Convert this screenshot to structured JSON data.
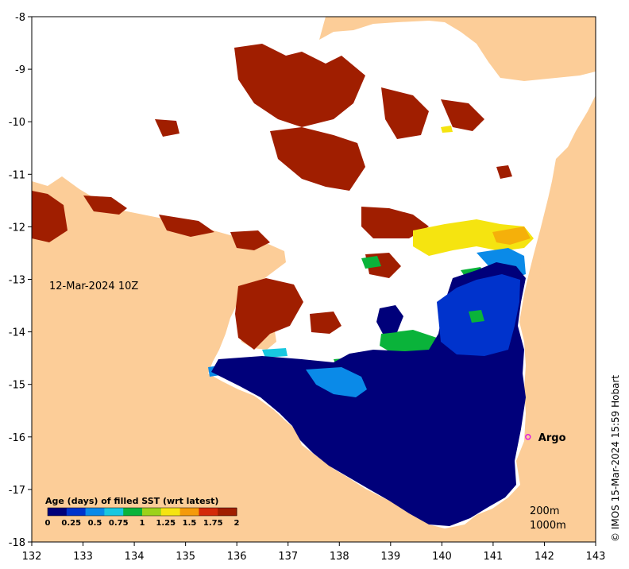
{
  "map": {
    "date_label": "12-Mar-2024 10Z",
    "x_ticks": [
      "132",
      "133",
      "134",
      "135",
      "136",
      "137",
      "138",
      "139",
      "140",
      "141",
      "142",
      "143"
    ],
    "y_ticks": [
      "-8",
      "-9",
      "-10",
      "-11",
      "-12",
      "-13",
      "-14",
      "-15",
      "-16",
      "-17",
      "-18"
    ],
    "x_range": [
      132,
      143
    ],
    "y_range": [
      -18,
      -8
    ],
    "land_color": "#fccd98",
    "missing_color": "#ffffff"
  },
  "legend": {
    "title": "Age (days) of filled SST (wrt latest)",
    "ticks": [
      "0",
      "0.25",
      "0.5",
      "0.75",
      "1",
      "1.25",
      "1.5",
      "1.75",
      "2"
    ],
    "colors": [
      "#00007a",
      "#0033cc",
      "#0a8ae8",
      "#18c8e0",
      "#0ab33a",
      "#9cd21a",
      "#f5e410",
      "#f59a0a",
      "#d42a0a",
      "#a01e00"
    ]
  },
  "argo": {
    "label": "Argo",
    "lon": 141.68,
    "lat": -16.0,
    "color": "#e020e0"
  },
  "depth_labels": [
    "200m",
    "1000m"
  ],
  "credit": "© IMOS 15-Mar-2024 15:59 Hobart"
}
